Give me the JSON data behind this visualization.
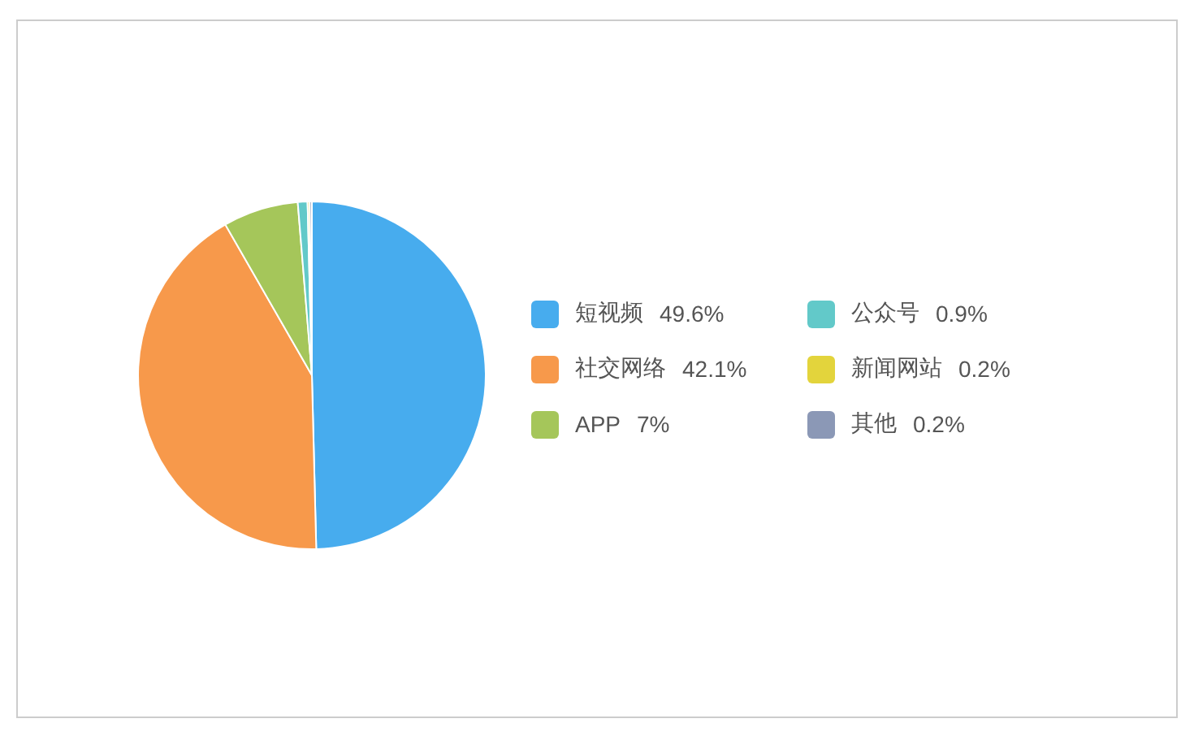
{
  "chart_data": {
    "type": "pie",
    "categories": [
      "短视频",
      "社交网络",
      "APP",
      "公众号",
      "新闻网站",
      "其他"
    ],
    "values": [
      49.6,
      42.1,
      7,
      0.9,
      0.2,
      0.2
    ],
    "value_labels": [
      "49.6%",
      "42.1%",
      "7%",
      "0.9%",
      "0.2%",
      "0.2%"
    ],
    "colors": [
      "#47acee",
      "#f7994b",
      "#a5c65a",
      "#62c9c9",
      "#e3d43c",
      "#8b98b6"
    ],
    "legend": "right"
  }
}
